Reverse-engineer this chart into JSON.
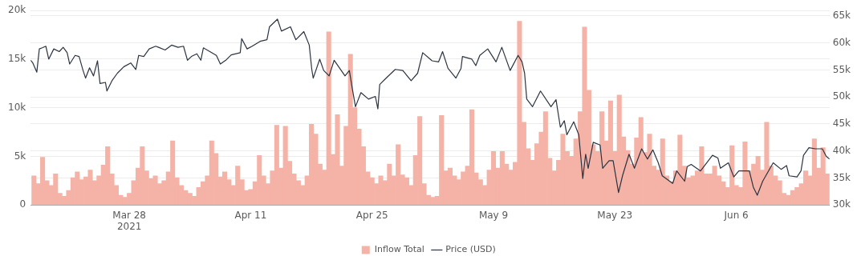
{
  "chart_data": {
    "type": "bar",
    "xlim": [
      "2021-03-16T15:00",
      "2021-06-16T18:00"
    ],
    "xticks": [
      {
        "value": "2021-03-28",
        "label": "Mar 28\n2021"
      },
      {
        "value": "2021-04-11",
        "label": "Apr 11"
      },
      {
        "value": "2021-04-25",
        "label": "Apr 25"
      },
      {
        "value": "2021-05-09",
        "label": "May 9"
      },
      {
        "value": "2021-05-23",
        "label": "May 23"
      },
      {
        "value": "2021-06-06",
        "label": "Jun 6"
      }
    ],
    "ylim": [
      0,
      20000
    ],
    "yticks": [
      0,
      {
        "value": 5000,
        "label": "5k"
      },
      {
        "value": 10000,
        "label": "10k"
      },
      {
        "value": 15000,
        "label": "15k"
      },
      {
        "value": 20000,
        "label": "20k"
      }
    ],
    "y2lim": [
      30000,
      66000
    ],
    "y2ticks": [
      {
        "value": 30000,
        "label": "30k"
      },
      {
        "value": 35000,
        "label": "35k"
      },
      {
        "value": 40000,
        "label": "40k"
      },
      {
        "value": 45000,
        "label": "45k"
      },
      {
        "value": 50000,
        "label": "50k"
      },
      {
        "value": 55000,
        "label": "55k"
      },
      {
        "value": 60000,
        "label": "60k"
      },
      {
        "value": 65000,
        "label": "65k"
      }
    ],
    "grid": "y",
    "legend": "bottom",
    "x": [
      "2021-03-17T00:00",
      "2021-03-17T12:00",
      "2021-03-18T00:00",
      "2021-03-18T12:00",
      "2021-03-19T00:00",
      "2021-03-19T12:00",
      "2021-03-20T00:00",
      "2021-03-20T12:00",
      "2021-03-21T00:00",
      "2021-03-21T12:00",
      "2021-03-22T00:00",
      "2021-03-22T12:00",
      "2021-03-23T00:00",
      "2021-03-23T12:00",
      "2021-03-24T00:00",
      "2021-03-24T12:00",
      "2021-03-25T00:00",
      "2021-03-25T12:00",
      "2021-03-26T00:00",
      "2021-03-26T12:00",
      "2021-03-27T00:00",
      "2021-03-27T12:00",
      "2021-03-28T00:00",
      "2021-03-28T12:00",
      "2021-03-29T00:00",
      "2021-03-29T12:00",
      "2021-03-30T00:00",
      "2021-03-30T12:00",
      "2021-03-31T00:00",
      "2021-03-31T12:00",
      "2021-04-01T00:00",
      "2021-04-01T12:00",
      "2021-04-02T00:00",
      "2021-04-02T12:00",
      "2021-04-03T00:00",
      "2021-04-03T12:00",
      "2021-04-04T00:00",
      "2021-04-04T12:00",
      "2021-04-05T00:00",
      "2021-04-05T12:00",
      "2021-04-06T00:00",
      "2021-04-06T12:00",
      "2021-04-07T00:00",
      "2021-04-07T12:00",
      "2021-04-08T00:00",
      "2021-04-08T12:00",
      "2021-04-09T00:00",
      "2021-04-09T12:00",
      "2021-04-10T00:00",
      "2021-04-10T12:00",
      "2021-04-11T00:00",
      "2021-04-11T12:00",
      "2021-04-12T00:00",
      "2021-04-12T12:00",
      "2021-04-13T00:00",
      "2021-04-13T12:00",
      "2021-04-14T00:00",
      "2021-04-14T12:00",
      "2021-04-15T00:00",
      "2021-04-15T12:00",
      "2021-04-16T00:00",
      "2021-04-16T12:00",
      "2021-04-17T00:00",
      "2021-04-17T12:00",
      "2021-04-18T00:00",
      "2021-04-18T12:00",
      "2021-04-19T00:00",
      "2021-04-19T12:00",
      "2021-04-20T00:00",
      "2021-04-20T12:00",
      "2021-04-21T00:00",
      "2021-04-21T12:00",
      "2021-04-22T00:00",
      "2021-04-22T12:00",
      "2021-04-23T00:00",
      "2021-04-23T12:00",
      "2021-04-24T00:00",
      "2021-04-24T12:00",
      "2021-04-25T00:00",
      "2021-04-25T12:00",
      "2021-04-26T00:00",
      "2021-04-26T12:00",
      "2021-04-27T00:00",
      "2021-04-27T12:00",
      "2021-04-28T00:00",
      "2021-04-28T12:00",
      "2021-04-29T00:00",
      "2021-04-29T12:00",
      "2021-04-30T00:00",
      "2021-04-30T12:00",
      "2021-05-01T00:00",
      "2021-05-01T12:00",
      "2021-05-02T00:00",
      "2021-05-02T12:00",
      "2021-05-03T00:00",
      "2021-05-03T12:00",
      "2021-05-04T00:00",
      "2021-05-04T12:00",
      "2021-05-05T00:00",
      "2021-05-05T12:00",
      "2021-05-06T00:00",
      "2021-05-06T12:00",
      "2021-05-07T00:00",
      "2021-05-07T12:00",
      "2021-05-08T00:00",
      "2021-05-08T12:00",
      "2021-05-09T00:00",
      "2021-05-09T12:00",
      "2021-05-10T00:00",
      "2021-05-10T12:00",
      "2021-05-11T00:00",
      "2021-05-11T12:00",
      "2021-05-12T00:00",
      "2021-05-12T12:00",
      "2021-05-13T00:00",
      "2021-05-13T12:00",
      "2021-05-14T00:00",
      "2021-05-14T12:00",
      "2021-05-15T00:00",
      "2021-05-15T12:00",
      "2021-05-16T00:00",
      "2021-05-16T12:00",
      "2021-05-17T00:00",
      "2021-05-17T12:00",
      "2021-05-18T00:00",
      "2021-05-18T12:00",
      "2021-05-19T00:00",
      "2021-05-19T12:00",
      "2021-05-20T00:00",
      "2021-05-20T12:00",
      "2021-05-21T00:00",
      "2021-05-21T12:00",
      "2021-05-22T00:00",
      "2021-05-22T12:00",
      "2021-05-23T00:00",
      "2021-05-23T12:00",
      "2021-05-24T00:00",
      "2021-05-24T12:00",
      "2021-05-25T00:00",
      "2021-05-25T12:00",
      "2021-05-26T00:00",
      "2021-05-26T12:00",
      "2021-05-27T00:00",
      "2021-05-27T12:00",
      "2021-05-28T00:00",
      "2021-05-28T12:00",
      "2021-05-29T00:00",
      "2021-05-29T12:00",
      "2021-05-30T00:00",
      "2021-05-30T12:00",
      "2021-05-31T00:00",
      "2021-05-31T12:00",
      "2021-06-01T00:00",
      "2021-06-01T12:00",
      "2021-06-02T00:00",
      "2021-06-02T12:00",
      "2021-06-03T00:00",
      "2021-06-03T12:00",
      "2021-06-04T00:00",
      "2021-06-04T12:00",
      "2021-06-05T00:00",
      "2021-06-05T12:00",
      "2021-06-06T00:00",
      "2021-06-06T12:00",
      "2021-06-07T00:00",
      "2021-06-07T12:00",
      "2021-06-08T00:00",
      "2021-06-08T12:00",
      "2021-06-09T00:00",
      "2021-06-09T12:00",
      "2021-06-10T00:00",
      "2021-06-10T12:00",
      "2021-06-11T00:00",
      "2021-06-11T12:00",
      "2021-06-12T00:00",
      "2021-06-12T12:00",
      "2021-06-13T00:00",
      "2021-06-13T12:00",
      "2021-06-14T00:00",
      "2021-06-14T12:00",
      "2021-06-15T00:00",
      "2021-06-15T12:00",
      "2021-06-16T00:00",
      "2021-06-16T12:00"
    ],
    "series": [
      {
        "name": "Inflow Total",
        "color": "#f5b2a6",
        "values": [
          3000,
          2200,
          4900,
          2500,
          2000,
          3200,
          1200,
          900,
          1500,
          2800,
          3400,
          2600,
          2900,
          3600,
          2500,
          3000,
          4100,
          6000,
          3200,
          2000,
          1000,
          800,
          1200,
          2500,
          3800,
          6000,
          3500,
          2700,
          3000,
          2200,
          2500,
          3400,
          6600,
          2800,
          2000,
          1500,
          1200,
          900,
          1800,
          2400,
          3000,
          6600,
          5300,
          2900,
          3400,
          2600,
          2000,
          4000,
          2600,
          1500,
          1600,
          2400,
          5100,
          3000,
          2200,
          3500,
          8200,
          3800,
          8100,
          4500,
          3200,
          2500,
          2000,
          3000,
          8300,
          7300,
          4200,
          3600,
          17800,
          5200,
          9300,
          4000,
          8100,
          15500,
          10000,
          7800,
          6000,
          3400,
          2800,
          2200,
          3000,
          2500,
          4200,
          3000,
          6200,
          3100,
          2800,
          2000,
          5100,
          9100,
          2200,
          1000,
          800,
          900,
          9200,
          3500,
          3800,
          3000,
          2600,
          3400,
          4000,
          9800,
          3300,
          2600,
          2000,
          3600,
          5500,
          3800,
          5500,
          4200,
          3600,
          4400,
          18900,
          8500,
          5800,
          4600,
          6300,
          7500,
          9600,
          4800,
          3500,
          4600,
          7300,
          5500,
          5000,
          6800,
          9600,
          18300,
          11800,
          6200,
          5500,
          9600,
          6600,
          10700,
          5500,
          11300,
          7000,
          5600,
          4200,
          6900,
          9000,
          5400,
          7300,
          4000,
          3600,
          6800,
          3000,
          2400,
          3500,
          7200,
          4000,
          2800,
          3000,
          3500,
          6000,
          3200,
          3200,
          4000,
          3000,
          2400,
          1800,
          6100,
          2000,
          1800,
          6500,
          3500,
          4200,
          5000,
          3600,
          8500,
          4000,
          3000,
          2500,
          1200,
          1000,
          1500,
          1800,
          2200,
          3500,
          3000,
          6800,
          3800,
          5900,
          3200
        ]
      },
      {
        "name": "Price (USD)",
        "type": "line",
        "axis": "y2",
        "color": "#2b3440",
        "x": [
          "2021-03-16T15:00",
          "2021-03-16T21:00",
          "2021-03-17T08:00",
          "2021-03-17T15:00",
          "2021-03-17T23:00",
          "2021-03-18T09:00",
          "2021-03-18T17:00",
          "2021-03-19T07:00",
          "2021-03-19T22:00",
          "2021-03-20T09:00",
          "2021-03-20T20:00",
          "2021-03-21T03:00",
          "2021-03-21T18:00",
          "2021-03-22T05:00",
          "2021-03-22T16:00",
          "2021-03-22T23:00",
          "2021-03-23T10:00",
          "2021-03-23T21:00",
          "2021-03-24T08:00",
          "2021-03-24T15:00",
          "2021-03-25T06:00",
          "2021-03-25T10:00",
          "2021-03-26T00:00",
          "2021-03-26T15:00",
          "2021-03-27T09:00",
          "2021-03-28T04:00",
          "2021-03-28T18:00",
          "2021-03-29T02:00",
          "2021-03-29T16:00",
          "2021-03-30T07:00",
          "2021-03-31T01:00",
          "2021-03-31T09:00",
          "2021-04-01T03:00",
          "2021-04-01T21:00",
          "2021-04-02T15:00",
          "2021-04-03T06:00",
          "2021-04-03T17:00",
          "2021-04-04T04:00",
          "2021-04-04T19:00",
          "2021-04-05T06:00",
          "2021-04-05T13:00",
          "2021-04-06T07:00",
          "2021-04-07T01:00",
          "2021-04-07T12:00",
          "2021-04-08T03:00",
          "2021-04-08T18:00",
          "2021-04-09T19:00",
          "2021-04-09T23:00",
          "2021-04-10T14:00",
          "2021-04-11T04:00",
          "2021-04-12T02:00",
          "2021-04-12T21:00",
          "2021-04-13T04:00",
          "2021-04-14T02:00",
          "2021-04-14T13:00",
          "2021-04-15T14:00",
          "2021-04-16T05:00",
          "2021-04-17T03:00",
          "2021-04-17T18:00",
          "2021-04-18T01:00",
          "2021-04-18T05:00",
          "2021-04-18T23:00",
          "2021-04-19T10:00",
          "2021-04-20T01:00",
          "2021-04-20T15:00",
          "2021-04-21T21:00",
          "2021-04-22T09:00",
          "2021-04-22T17:00",
          "2021-04-23T02:00",
          "2021-04-23T17:00",
          "2021-04-24T14:00",
          "2021-04-25T09:00",
          "2021-04-25T16:00",
          "2021-04-25T21:00",
          "2021-04-26T18:00",
          "2021-04-27T16:00",
          "2021-04-28T13:00",
          "2021-04-29T12:00",
          "2021-04-30T06:00",
          "2021-04-30T20:00",
          "2021-05-01T22:00",
          "2021-05-02T16:00",
          "2021-05-03T03:00",
          "2021-05-03T18:00",
          "2021-05-04T16:00",
          "2021-05-05T06:00",
          "2021-05-05T10:00",
          "2021-05-06T12:00",
          "2021-05-06T23:00",
          "2021-05-07T10:00",
          "2021-05-08T08:00",
          "2021-05-09T07:00",
          "2021-05-09T23:00",
          "2021-05-10T22:00",
          "2021-05-11T20:00",
          "2021-05-12T07:00",
          "2021-05-12T14:00",
          "2021-05-12T20:00",
          "2021-05-13T12:00",
          "2021-05-14T10:00",
          "2021-05-15T15:00",
          "2021-05-16T05:00",
          "2021-05-16T17:00",
          "2021-05-17T04:00",
          "2021-05-17T11:00",
          "2021-05-18T06:00",
          "2021-05-18T20:00",
          "2021-05-19T07:00",
          "2021-05-19T15:00",
          "2021-05-19T22:00",
          "2021-05-20T12:00",
          "2021-05-21T07:00",
          "2021-05-21T14:00",
          "2021-05-22T08:00",
          "2021-05-22T19:00",
          "2021-05-23T10:00",
          "2021-05-23T21:00",
          "2021-05-24T15:00",
          "2021-05-25T06:00",
          "2021-05-26T02:00",
          "2021-05-26T18:00",
          "2021-05-27T09:00",
          "2021-05-28T00:00",
          "2021-05-28T11:00",
          "2021-05-29T16:00",
          "2021-05-30T03:00",
          "2021-05-31T01:00",
          "2021-05-31T08:00",
          "2021-05-31T19:00",
          "2021-06-01T21:00",
          "2021-06-03T06:00",
          "2021-06-03T21:00",
          "2021-06-04T04:00",
          "2021-06-05T02:00",
          "2021-06-05T17:00",
          "2021-06-06T07:00",
          "2021-06-07T12:00",
          "2021-06-07T23:00",
          "2021-06-08T10:00",
          "2021-06-09T01:00",
          "2021-06-10T06:00",
          "2021-06-11T04:00",
          "2021-06-11T19:00",
          "2021-06-12T02:00",
          "2021-06-13T00:00",
          "2021-06-13T11:00",
          "2021-06-13T18:00",
          "2021-06-14T09:00",
          "2021-06-15T03:00",
          "2021-06-15T22:00",
          "2021-06-16T09:00",
          "2021-06-16T18:00"
        ],
        "values": [
          56800,
          56300,
          54600,
          58900,
          59100,
          59400,
          57000,
          58900,
          58400,
          59200,
          58200,
          56100,
          57700,
          57500,
          54900,
          53500,
          55400,
          53900,
          56700,
          52500,
          52700,
          51100,
          53000,
          54400,
          55600,
          56300,
          55100,
          57700,
          57500,
          58900,
          59400,
          59200,
          58700,
          59600,
          59200,
          59400,
          56800,
          57500,
          58000,
          56800,
          59100,
          58400,
          57700,
          56100,
          56800,
          57800,
          58200,
          60800,
          58900,
          59400,
          60300,
          60600,
          63000,
          64400,
          62200,
          63000,
          60600,
          62100,
          59600,
          55100,
          53500,
          57000,
          54900,
          53900,
          56800,
          53900,
          54900,
          51600,
          48200,
          50800,
          49600,
          50100,
          47800,
          52300,
          53700,
          55100,
          54900,
          53000,
          54400,
          58200,
          56700,
          56500,
          58400,
          55300,
          53500,
          55300,
          57500,
          57000,
          55800,
          57700,
          58900,
          56500,
          59200,
          54900,
          57700,
          56500,
          54400,
          49600,
          48200,
          51100,
          48200,
          49500,
          44400,
          45600,
          43000,
          45400,
          43000,
          34900,
          39400,
          36800,
          41600,
          41100,
          36800,
          38200,
          38200,
          32300,
          35400,
          39400,
          36800,
          40400,
          38500,
          40200,
          37800,
          35400,
          34000,
          36300,
          34400,
          37100,
          37500,
          36300,
          39200,
          38700,
          36800,
          37800,
          35200,
          36300,
          36300,
          33300,
          31800,
          34400,
          37800,
          36600,
          37300,
          35400,
          35200,
          36300,
          39200,
          40600,
          40400,
          40400,
          39000,
          38500
        ]
      }
    ]
  }
}
